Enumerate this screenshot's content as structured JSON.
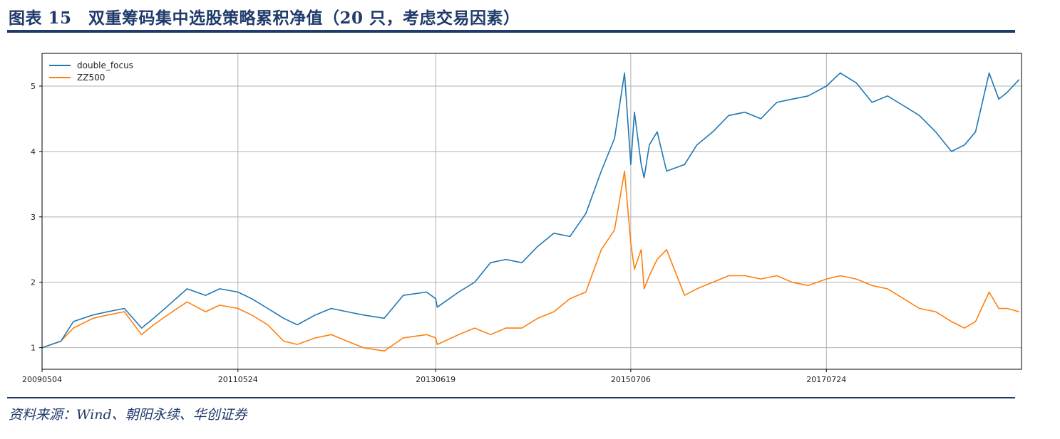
{
  "figure": {
    "title": "图表 15　双重筹码集中选股策略累积净值（20 只，考虑交易因素）",
    "source": "资料来源：Wind、朝阳永续、华创证券"
  },
  "chart_data": {
    "type": "line",
    "title": "",
    "xlabel": "",
    "ylabel": "",
    "x_ticks": [
      "20090504",
      "20110524",
      "20130619",
      "20150706",
      "20170724"
    ],
    "y_ticks": [
      1,
      2,
      3,
      4,
      5
    ],
    "ylim": [
      0.67,
      5.5
    ],
    "grid": true,
    "legend_position": "top-left",
    "x": [
      "2009-05-04",
      "2009-07-15",
      "2009-09-01",
      "2009-11-15",
      "2010-01-10",
      "2010-03-15",
      "2010-05-20",
      "2010-07-05",
      "2010-09-15",
      "2010-11-10",
      "2011-01-20",
      "2011-03-15",
      "2011-05-24",
      "2011-07-15",
      "2011-09-15",
      "2011-11-15",
      "2012-01-06",
      "2012-03-15",
      "2012-05-15",
      "2012-07-15",
      "2012-09-15",
      "2012-12-04",
      "2013-02-15",
      "2013-05-15",
      "2013-06-19",
      "2013-06-25",
      "2013-09-15",
      "2013-11-15",
      "2014-01-15",
      "2014-03-15",
      "2014-05-15",
      "2014-07-15",
      "2014-09-15",
      "2014-11-15",
      "2015-01-15",
      "2015-03-15",
      "2015-05-05",
      "2015-06-12",
      "2015-07-06",
      "2015-07-20",
      "2015-08-15",
      "2015-08-26",
      "2015-09-15",
      "2015-10-15",
      "2015-11-20",
      "2016-01-28",
      "2016-03-15",
      "2016-05-15",
      "2016-07-15",
      "2016-09-15",
      "2016-11-15",
      "2017-01-15",
      "2017-03-15",
      "2017-05-15",
      "2017-07-24",
      "2017-09-15",
      "2017-11-15",
      "2018-01-15",
      "2018-03-15",
      "2018-05-15",
      "2018-07-15",
      "2018-09-15",
      "2018-11-15",
      "2019-01-04",
      "2019-02-15",
      "2019-04-08",
      "2019-05-15",
      "2019-06-15",
      "2019-08-01"
    ],
    "series": [
      {
        "name": "double_focus",
        "color": "#1f77b4",
        "values": [
          1.0,
          1.1,
          1.4,
          1.5,
          1.55,
          1.6,
          1.3,
          1.45,
          1.7,
          1.9,
          1.8,
          1.9,
          1.85,
          1.75,
          1.6,
          1.45,
          1.35,
          1.5,
          1.6,
          1.55,
          1.5,
          1.45,
          1.8,
          1.85,
          1.75,
          1.62,
          1.85,
          2.0,
          2.3,
          2.35,
          2.3,
          2.55,
          2.75,
          2.7,
          3.05,
          3.7,
          4.2,
          5.2,
          3.8,
          4.6,
          3.8,
          3.6,
          4.1,
          4.3,
          3.7,
          3.8,
          4.1,
          4.3,
          4.55,
          4.6,
          4.5,
          4.75,
          4.8,
          4.85,
          5.0,
          5.2,
          5.05,
          4.75,
          4.85,
          4.7,
          4.55,
          4.3,
          4.0,
          4.1,
          4.3,
          5.2,
          4.8,
          4.9,
          5.1
        ]
      },
      {
        "name": "ZZ500",
        "color": "#ff7f0e",
        "values": [
          1.0,
          1.1,
          1.3,
          1.45,
          1.5,
          1.55,
          1.2,
          1.35,
          1.55,
          1.7,
          1.55,
          1.65,
          1.6,
          1.5,
          1.35,
          1.1,
          1.05,
          1.15,
          1.2,
          1.1,
          1.0,
          0.95,
          1.15,
          1.2,
          1.15,
          1.05,
          1.2,
          1.3,
          1.2,
          1.3,
          1.3,
          1.45,
          1.55,
          1.75,
          1.85,
          2.5,
          2.8,
          3.7,
          2.6,
          2.2,
          2.5,
          1.9,
          2.1,
          2.35,
          2.5,
          1.8,
          1.9,
          2.0,
          2.1,
          2.1,
          2.05,
          2.1,
          2.0,
          1.95,
          2.05,
          2.1,
          2.05,
          1.95,
          1.9,
          1.75,
          1.6,
          1.55,
          1.4,
          1.3,
          1.4,
          1.85,
          1.6,
          1.6,
          1.55
        ]
      }
    ]
  }
}
